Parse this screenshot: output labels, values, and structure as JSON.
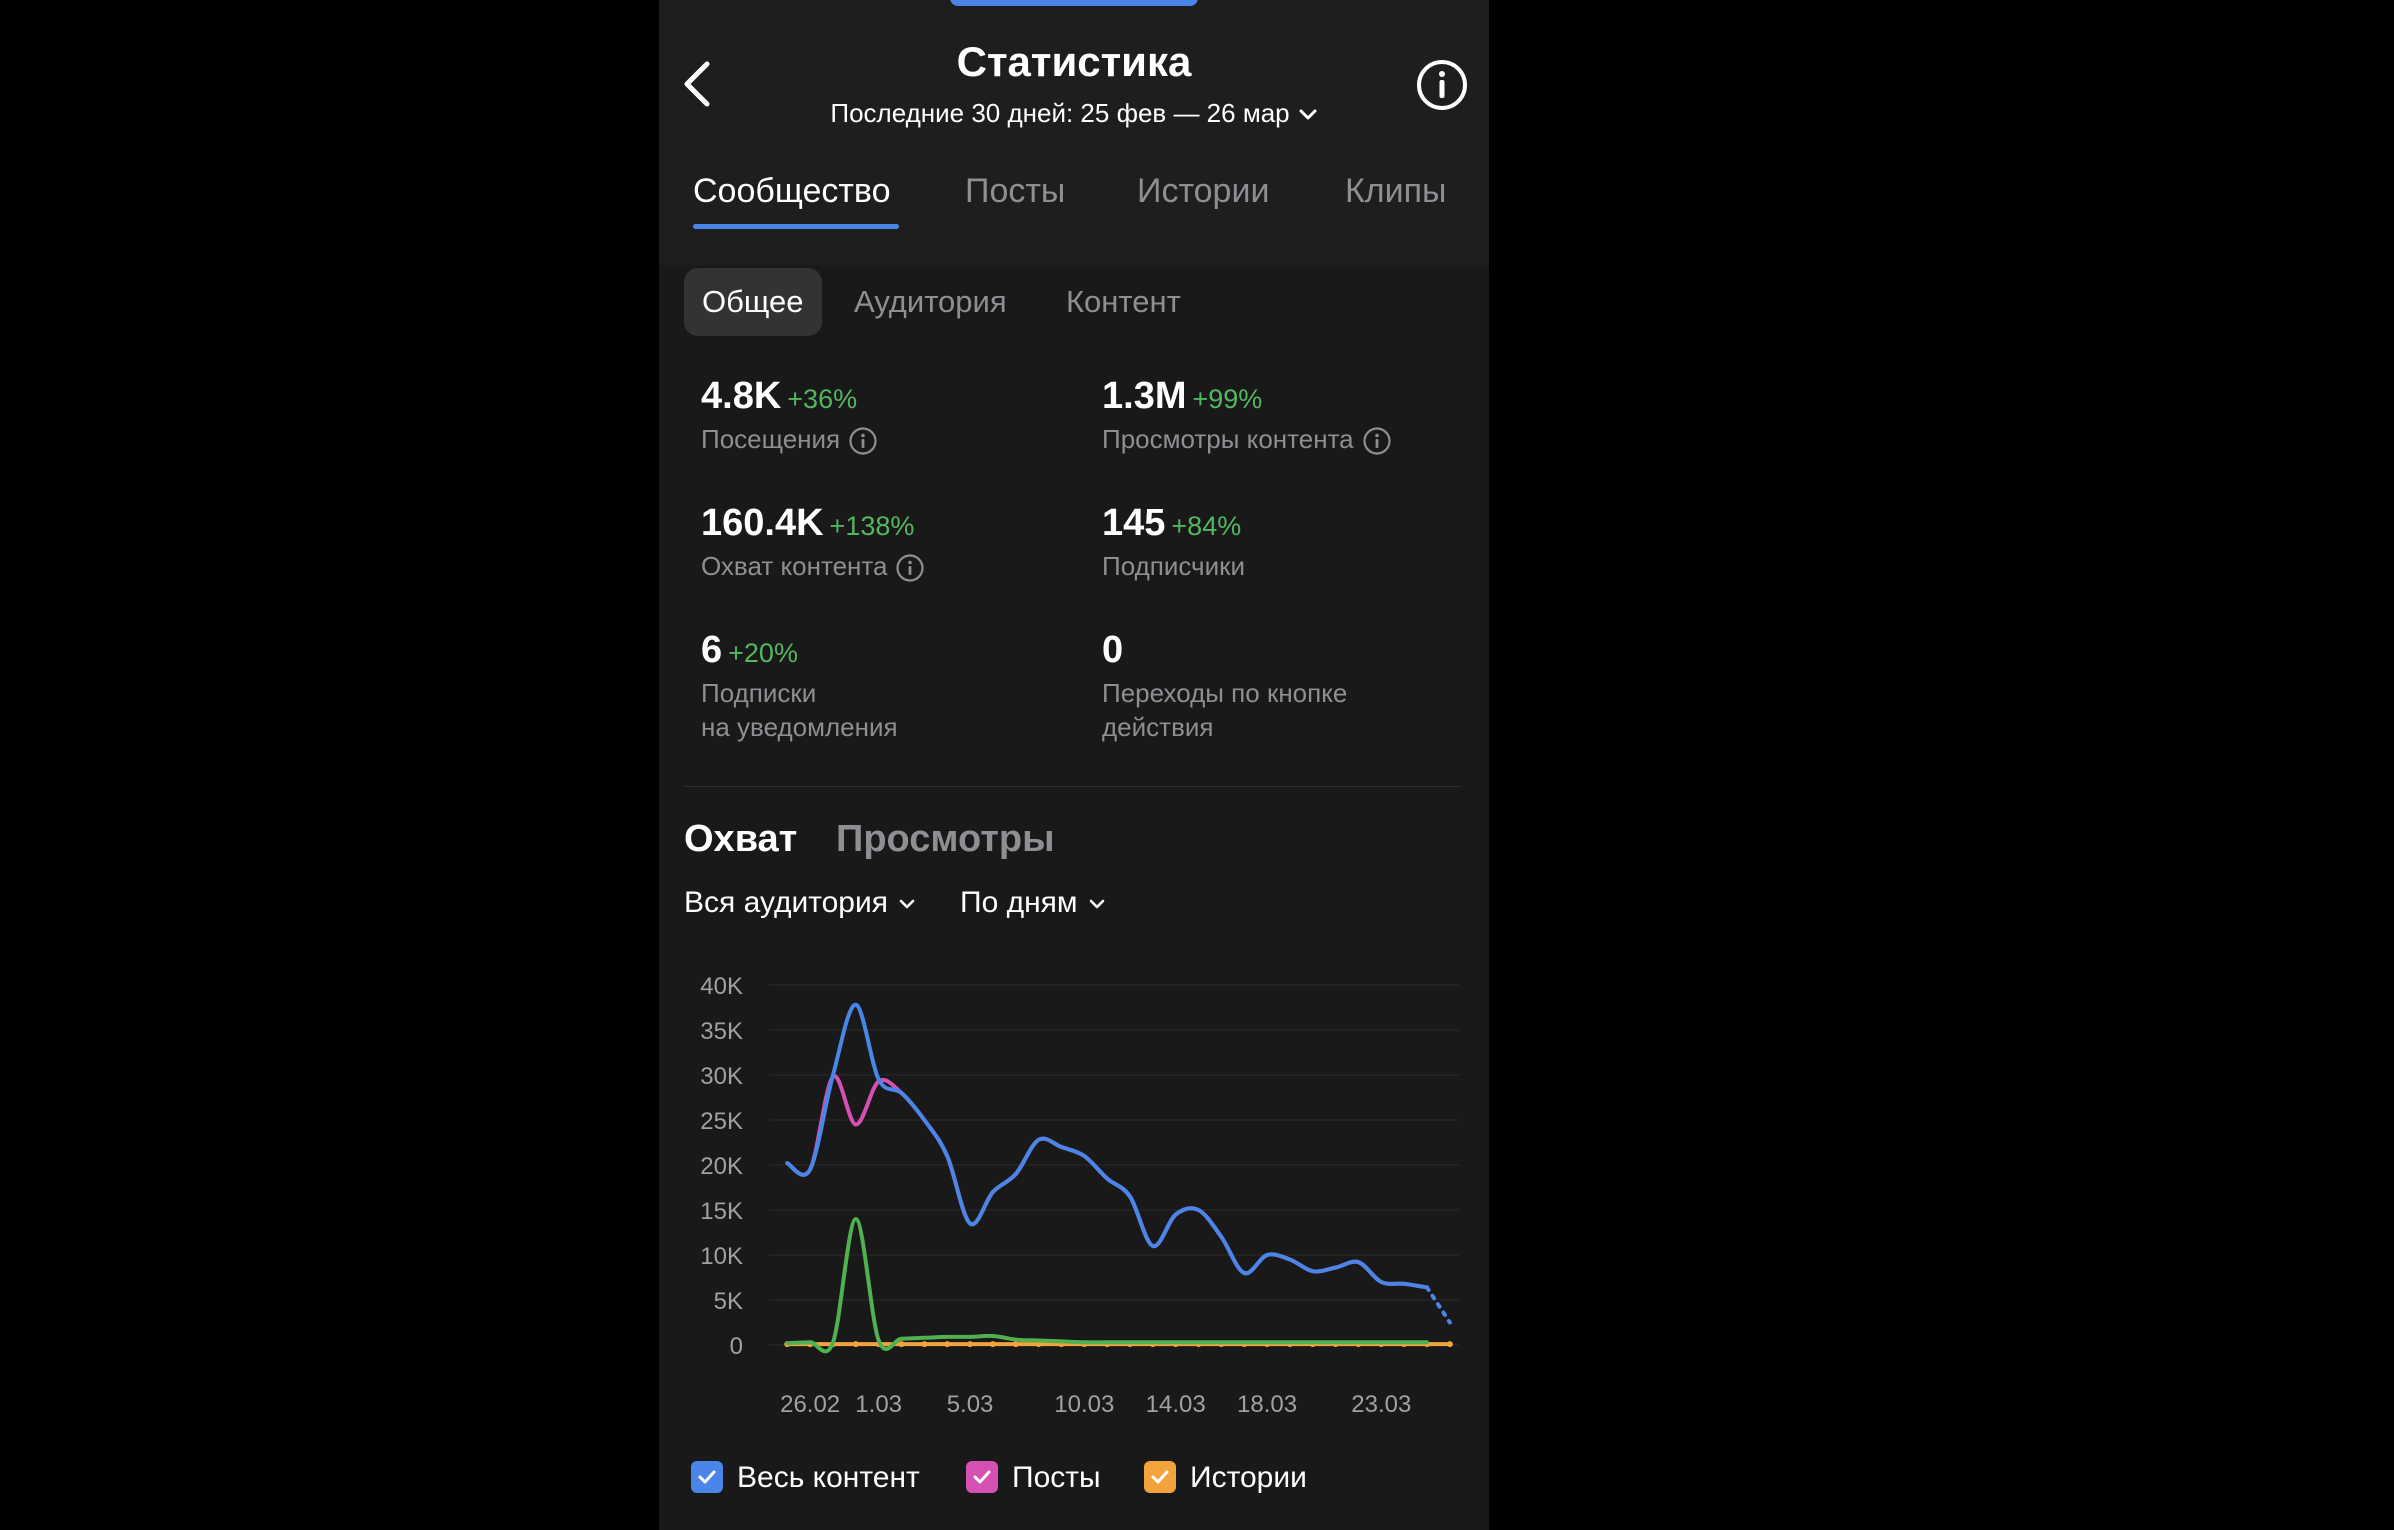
{
  "header": {
    "title": "Статистика",
    "period": "Последние 30 дней: 25 фев — 26 мар"
  },
  "tabs": [
    {
      "label": "Сообщество",
      "active": true
    },
    {
      "label": "Посты",
      "active": false
    },
    {
      "label": "Истории",
      "active": false
    },
    {
      "label": "Клипы",
      "active": false
    }
  ],
  "subtabs": [
    {
      "label": "Общее",
      "active": true
    },
    {
      "label": "Аудитория",
      "active": false
    },
    {
      "label": "Контент",
      "active": false
    }
  ],
  "metrics": [
    {
      "value": "4.8K",
      "delta": "+36%",
      "label": "Посещения",
      "info": true
    },
    {
      "value": "1.3M",
      "delta": "+99%",
      "label": "Просмотры контента",
      "info": true
    },
    {
      "value": "160.4K",
      "delta": "+138%",
      "label": "Охват контента",
      "info": true
    },
    {
      "value": "145",
      "delta": "+84%",
      "label": "Подписчики",
      "info": false
    },
    {
      "value": "6",
      "delta": "+20%",
      "label_line1": "Подписки",
      "label_line2": "на уведомления",
      "info": false
    },
    {
      "value": "0",
      "delta": "",
      "label_line1": "Переходы по кнопке",
      "label_line2": "действия",
      "info": false
    }
  ],
  "chart_section": {
    "tabs": [
      {
        "label": "Охват",
        "active": true
      },
      {
        "label": "Просмотры",
        "active": false
      }
    ],
    "filters": {
      "audience": "Вся аудитория",
      "grouping": "По дням"
    }
  },
  "colors": {
    "accent": "#4a86e8",
    "positive": "#52b75e",
    "posts": "#d64fb2",
    "stories": "#f2a33c",
    "green_series": "#4fb14f"
  },
  "chart_data": {
    "type": "line",
    "ylim": [
      0,
      40000
    ],
    "y_ticks": [
      "40K",
      "35K",
      "30K",
      "25K",
      "20K",
      "15K",
      "10K",
      "5K",
      "0"
    ],
    "x_tick_labels": [
      {
        "label": "26.02",
        "day": 2
      },
      {
        "label": "1.03",
        "day": 5
      },
      {
        "label": "5.03",
        "day": 9
      },
      {
        "label": "10.03",
        "day": 14
      },
      {
        "label": "14.03",
        "day": 18
      },
      {
        "label": "18.03",
        "day": 22
      },
      {
        "label": "23.03",
        "day": 27
      }
    ],
    "x_days": [
      1,
      2,
      3,
      4,
      5,
      6,
      7,
      8,
      9,
      10,
      11,
      12,
      13,
      14,
      15,
      16,
      17,
      18,
      19,
      20,
      21,
      22,
      23,
      24,
      25,
      26,
      27,
      28,
      29,
      30
    ],
    "series": [
      {
        "name": "Весь контент",
        "color": "#4a86e8",
        "dashed_last": true,
        "values": [
          20200,
          19500,
          30000,
          37800,
          29500,
          28000,
          25000,
          21000,
          13500,
          17000,
          19000,
          22800,
          22000,
          21000,
          18500,
          16500,
          11000,
          14500,
          15000,
          12000,
          8000,
          10000,
          9500,
          8200,
          8600,
          9200,
          7000,
          6800,
          6400,
          2500
        ]
      },
      {
        "name": "Посты",
        "color": "#d64fb2",
        "values": [
          20200,
          19500,
          29800,
          24500,
          29300,
          28000,
          25000,
          21000,
          13500,
          17000,
          19000,
          22800,
          22000,
          21000,
          18500,
          16500,
          11000,
          14500,
          15000,
          12000,
          8000,
          10000,
          9500,
          8200,
          8600,
          9200,
          7000,
          6800,
          6400,
          null
        ]
      },
      {
        "name": "",
        "color": "#4fb14f",
        "values": [
          200,
          300,
          300,
          14000,
          500,
          700,
          800,
          900,
          900,
          1000,
          600,
          500,
          400,
          300,
          300,
          300,
          300,
          300,
          300,
          300,
          300,
          300,
          300,
          300,
          300,
          300,
          300,
          300,
          300,
          null
        ]
      },
      {
        "name": "Истории",
        "color": "#f2a33c",
        "values": [
          100,
          100,
          100,
          100,
          100,
          100,
          100,
          100,
          100,
          100,
          100,
          100,
          100,
          100,
          100,
          100,
          100,
          100,
          100,
          100,
          100,
          100,
          100,
          100,
          100,
          100,
          100,
          100,
          100,
          100
        ]
      }
    ],
    "legend": [
      {
        "label": "Весь контент",
        "color": "#4a86e8"
      },
      {
        "label": "Посты",
        "color": "#d64fb2"
      },
      {
        "label": "Истории",
        "color": "#f2a33c"
      }
    ]
  }
}
